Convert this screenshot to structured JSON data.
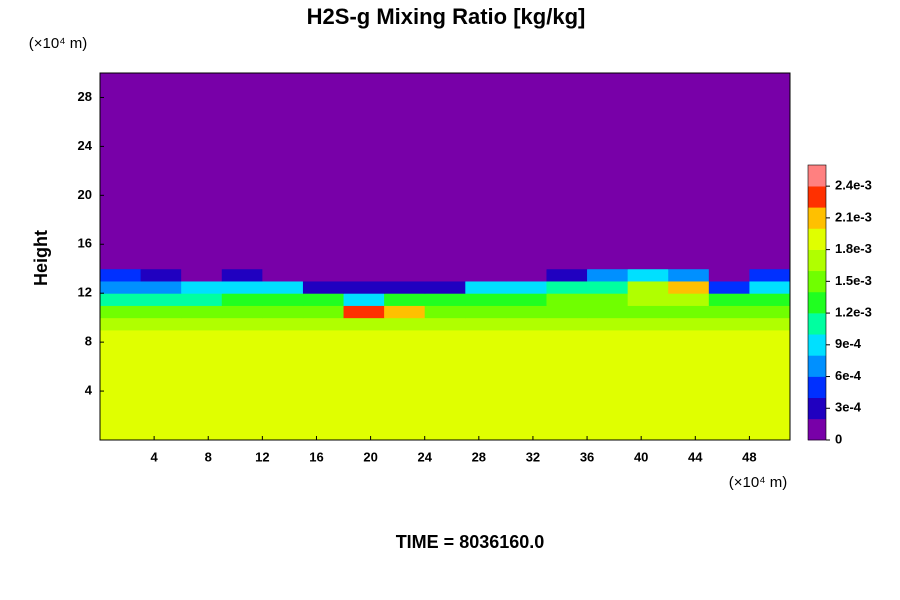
{
  "chart_data": {
    "type": "heatmap",
    "title": "H2S-g Mixing Ratio [kg/kg]",
    "y_label": "Height",
    "y_unit": "(×10⁴ m)",
    "x_unit": "(×10⁴ m)",
    "footer": "TIME = 8036160.0",
    "xlim": [
      0,
      51
    ],
    "ylim": [
      0,
      30
    ],
    "xticks": [
      4,
      8,
      12,
      16,
      20,
      24,
      28,
      32,
      36,
      40,
      44,
      48
    ],
    "yticks": [
      4,
      8,
      12,
      16,
      20,
      24,
      28
    ],
    "x_bins": [
      0,
      3,
      6,
      9,
      12,
      15,
      18,
      21,
      24,
      27,
      30,
      33,
      36,
      39,
      42,
      45,
      48,
      51
    ],
    "y_bins": [
      0,
      9,
      10,
      11,
      12,
      13,
      14,
      30
    ],
    "z": [
      [
        0.0019,
        0.0019,
        0.0019,
        0.0019,
        0.0019,
        0.0019,
        0.0019,
        0.0019,
        0.0019,
        0.0019,
        0.0019,
        0.0019,
        0.0019,
        0.0019,
        0.0019,
        0.0019,
        0.0019
      ],
      [
        0.0017,
        0.0017,
        0.0017,
        0.0017,
        0.0017,
        0.0017,
        0.0017,
        0.0017,
        0.0017,
        0.0017,
        0.0017,
        0.0017,
        0.0017,
        0.0017,
        0.0017,
        0.0017,
        0.0017
      ],
      [
        0.0015,
        0.0015,
        0.0015,
        0.0015,
        0.0015,
        0.0015,
        0.0023,
        0.0021,
        0.0015,
        0.0015,
        0.0015,
        0.0015,
        0.0015,
        0.0015,
        0.0015,
        0.0015,
        0.0015
      ],
      [
        0.0011,
        0.0011,
        0.0011,
        0.0013,
        0.0013,
        0.0013,
        0.0009,
        0.0013,
        0.0013,
        0.0013,
        0.0013,
        0.0015,
        0.0015,
        0.0017,
        0.0017,
        0.0013,
        0.0013
      ],
      [
        0.0007,
        0.0007,
        0.0009,
        0.0009,
        0.0009,
        0.0003,
        0.0003,
        0.0003,
        0.0003,
        0.0009,
        0.0009,
        0.0011,
        0.0011,
        0.0017,
        0.0021,
        0.0005,
        0.0009
      ],
      [
        0.0005,
        0.0003,
        0.0001,
        0.0003,
        0.0001,
        0.0001,
        0.0001,
        0.0001,
        0.0001,
        0.0001,
        0.0001,
        0.0003,
        0.0007,
        0.0009,
        0.0007,
        0.0001,
        0.0005
      ],
      [
        0,
        0,
        0,
        0,
        0,
        0,
        0,
        0,
        0,
        0,
        0,
        0,
        0,
        0,
        0,
        0,
        0
      ]
    ],
    "zlim": [
      0,
      0.0026
    ],
    "zticks": [
      0,
      {
        "value": 0.0003,
        "label": "3e-4"
      },
      {
        "value": 0.0006,
        "label": "6e-4"
      },
      {
        "value": 0.0009,
        "label": "9e-4"
      },
      {
        "value": 0.0012,
        "label": "1.2e-3"
      },
      {
        "value": 0.0015,
        "label": "1.5e-3"
      },
      {
        "value": 0.0018,
        "label": "1.8e-3"
      },
      {
        "value": 0.0021,
        "label": "2.1e-3"
      },
      {
        "value": 0.0024,
        "label": "2.4e-3"
      }
    ],
    "colormap": [
      "#7800a8",
      "#2000c0",
      "#0030ff",
      "#0090ff",
      "#00e0ff",
      "#00ffa0",
      "#20ff20",
      "#70ff00",
      "#b0ff00",
      "#e0ff00",
      "#ffc000",
      "#ff3000",
      "#ff8080"
    ]
  }
}
